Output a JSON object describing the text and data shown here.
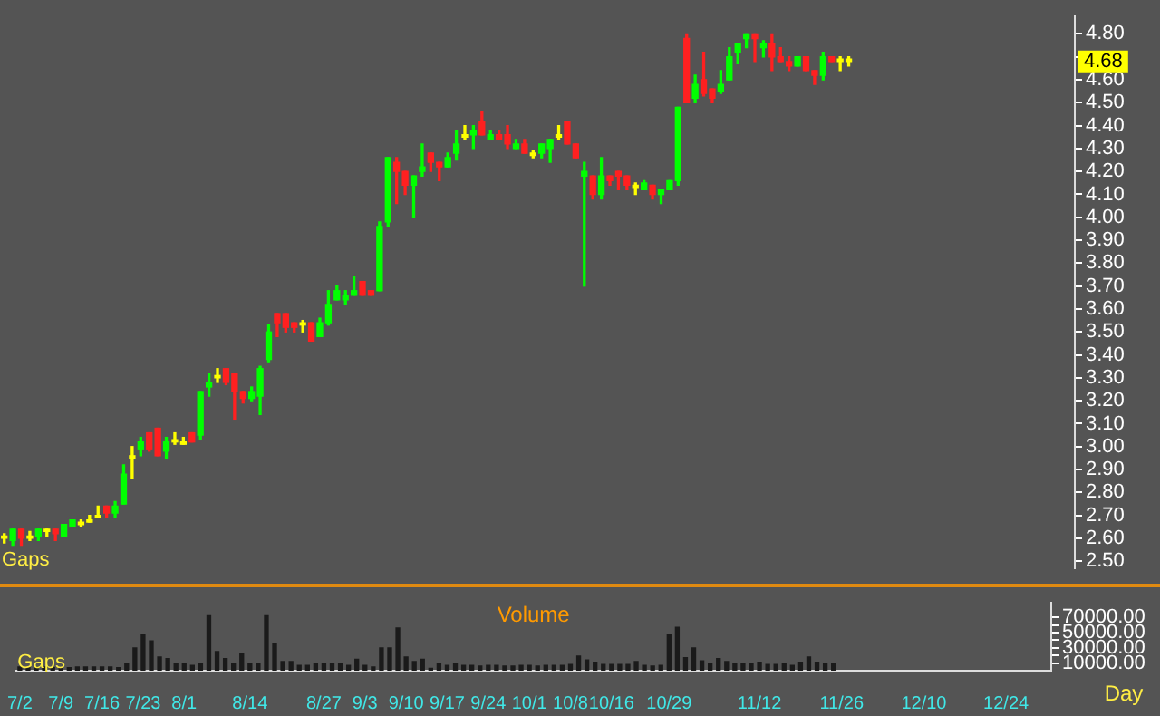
{
  "chart_data": [
    {
      "type": "candlestick",
      "tick_labels": "y",
      "categories": [
        null,
        null,
        null,
        null,
        null,
        null,
        null,
        null,
        null,
        null,
        null,
        null,
        null,
        null,
        null,
        null,
        null,
        null,
        null,
        null,
        null,
        null,
        null,
        null,
        null,
        null,
        null,
        null,
        null,
        null,
        null,
        null,
        null,
        null,
        null,
        null,
        null,
        null,
        null,
        null,
        null,
        null,
        null,
        null,
        null,
        null,
        null,
        null,
        null,
        null,
        null,
        null,
        null,
        null,
        null,
        null,
        null,
        null,
        null,
        null,
        null,
        null,
        null,
        null,
        null,
        null,
        null,
        null,
        null,
        null,
        null,
        null,
        null,
        null,
        null,
        null,
        null,
        null,
        null,
        null,
        null,
        null,
        null,
        null,
        null,
        null,
        null,
        null,
        null,
        null,
        null,
        null,
        null,
        null,
        null,
        null,
        null,
        null,
        null,
        null,
        null,
        null,
        null,
        null,
        null,
        null,
        null,
        null,
        null,
        null,
        null,
        null,
        null,
        null,
        null,
        null,
        null,
        null,
        null,
        null,
        null,
        null,
        null,
        null,
        null,
        null
      ],
      "ohlc": [
        [
          2.61,
          2.62,
          2.58,
          2.6
        ],
        [
          2.59,
          2.64,
          2.57,
          2.64
        ],
        [
          2.64,
          2.64,
          2.57,
          2.6
        ],
        [
          2.61,
          2.63,
          2.59,
          2.6
        ],
        [
          2.61,
          2.64,
          2.59,
          2.64
        ],
        [
          2.64,
          2.64,
          2.61,
          2.63
        ],
        [
          2.64,
          2.64,
          2.59,
          2.62
        ],
        [
          2.61,
          2.66,
          2.61,
          2.66
        ],
        [
          2.65,
          2.68,
          2.65,
          2.68
        ],
        [
          2.67,
          2.68,
          2.65,
          2.66
        ],
        [
          2.68,
          2.7,
          2.67,
          2.67
        ],
        [
          2.7,
          2.74,
          2.69,
          2.69
        ],
        [
          2.74,
          2.74,
          2.69,
          2.71
        ],
        [
          2.71,
          2.76,
          2.69,
          2.74
        ],
        [
          2.75,
          2.92,
          2.75,
          2.88
        ],
        [
          2.96,
          3.0,
          2.86,
          2.95
        ],
        [
          2.99,
          3.04,
          2.96,
          3.02
        ],
        [
          3.06,
          3.06,
          2.98,
          2.99
        ],
        [
          3.08,
          3.08,
          2.96,
          2.96
        ],
        [
          2.98,
          3.04,
          2.95,
          3.02
        ],
        [
          3.02,
          3.06,
          3.01,
          3.03
        ],
        [
          3.02,
          3.04,
          3.01,
          3.01
        ],
        [
          3.06,
          3.06,
          3.02,
          3.02
        ],
        [
          3.05,
          3.24,
          3.03,
          3.24
        ],
        [
          3.26,
          3.32,
          3.22,
          3.28
        ],
        [
          3.31,
          3.34,
          3.28,
          3.3
        ],
        [
          3.34,
          3.34,
          3.27,
          3.28
        ],
        [
          3.32,
          3.32,
          3.12,
          3.24
        ],
        [
          3.24,
          3.24,
          3.19,
          3.21
        ],
        [
          3.21,
          3.26,
          3.2,
          3.24
        ],
        [
          3.22,
          3.35,
          3.14,
          3.34
        ],
        [
          3.38,
          3.53,
          3.37,
          3.5
        ],
        [
          3.58,
          3.58,
          3.48,
          3.54
        ],
        [
          3.58,
          3.58,
          3.5,
          3.52
        ],
        [
          3.54,
          3.54,
          3.5,
          3.52
        ],
        [
          3.54,
          3.55,
          3.5,
          3.53
        ],
        [
          3.54,
          3.54,
          3.46,
          3.46
        ],
        [
          3.48,
          3.56,
          3.48,
          3.54
        ],
        [
          3.54,
          3.68,
          3.53,
          3.62
        ],
        [
          3.64,
          3.7,
          3.64,
          3.68
        ],
        [
          3.64,
          3.68,
          3.62,
          3.66
        ],
        [
          3.66,
          3.74,
          3.66,
          3.68
        ],
        [
          3.72,
          3.72,
          3.66,
          3.66
        ],
        [
          3.68,
          3.68,
          3.66,
          3.66
        ],
        [
          3.68,
          3.98,
          3.68,
          3.96
        ],
        [
          3.98,
          4.26,
          3.96,
          4.26
        ],
        [
          4.24,
          4.26,
          4.06,
          4.2
        ],
        [
          4.2,
          4.2,
          4.1,
          4.14
        ],
        [
          4.14,
          4.18,
          4.0,
          4.18
        ],
        [
          4.2,
          4.32,
          4.18,
          4.22
        ],
        [
          4.28,
          4.28,
          4.2,
          4.24
        ],
        [
          4.24,
          4.24,
          4.16,
          4.22
        ],
        [
          4.22,
          4.28,
          4.22,
          4.26
        ],
        [
          4.28,
          4.38,
          4.25,
          4.32
        ],
        [
          4.36,
          4.4,
          4.34,
          4.35
        ],
        [
          4.36,
          4.4,
          4.3,
          4.38
        ],
        [
          4.42,
          4.46,
          4.36,
          4.36
        ],
        [
          4.34,
          4.38,
          4.34,
          4.36
        ],
        [
          4.36,
          4.38,
          4.34,
          4.34
        ],
        [
          4.36,
          4.4,
          4.3,
          4.32
        ],
        [
          4.3,
          4.34,
          4.3,
          4.32
        ],
        [
          4.32,
          4.34,
          4.28,
          4.28
        ],
        [
          4.28,
          4.29,
          4.26,
          4.27
        ],
        [
          4.28,
          4.32,
          4.26,
          4.32
        ],
        [
          4.3,
          4.34,
          4.24,
          4.34
        ],
        [
          4.36,
          4.4,
          4.34,
          4.35
        ],
        [
          4.42,
          4.42,
          4.32,
          4.32
        ],
        [
          4.32,
          4.32,
          4.26,
          4.26
        ],
        [
          4.18,
          4.24,
          3.7,
          4.2
        ],
        [
          4.18,
          4.18,
          4.08,
          4.1
        ],
        [
          4.1,
          4.26,
          4.08,
          4.18
        ],
        [
          4.18,
          4.18,
          4.14,
          4.16
        ],
        [
          4.2,
          4.2,
          4.12,
          4.18
        ],
        [
          4.18,
          4.18,
          4.12,
          4.14
        ],
        [
          4.14,
          4.15,
          4.1,
          4.13
        ],
        [
          4.12,
          4.16,
          4.12,
          4.15
        ],
        [
          4.14,
          4.14,
          4.08,
          4.1
        ],
        [
          4.1,
          4.12,
          4.06,
          4.12
        ],
        [
          4.12,
          4.16,
          4.12,
          4.16
        ],
        [
          4.16,
          4.48,
          4.14,
          4.48
        ],
        [
          4.78,
          4.8,
          4.5,
          4.5
        ],
        [
          4.52,
          4.62,
          4.5,
          4.58
        ],
        [
          4.6,
          4.72,
          4.53,
          4.54
        ],
        [
          4.56,
          4.56,
          4.5,
          4.52
        ],
        [
          4.55,
          4.64,
          4.54,
          4.58
        ],
        [
          4.6,
          4.74,
          4.6,
          4.7
        ],
        [
          4.72,
          4.76,
          4.67,
          4.76
        ],
        [
          4.78,
          4.8,
          4.74,
          4.8
        ],
        [
          4.8,
          4.8,
          4.68,
          4.78
        ],
        [
          4.74,
          4.77,
          4.7,
          4.76
        ],
        [
          4.76,
          4.8,
          4.64,
          4.7
        ],
        [
          4.7,
          4.74,
          4.68,
          4.68
        ],
        [
          4.68,
          4.7,
          4.64,
          4.66
        ],
        [
          4.66,
          4.7,
          4.66,
          4.7
        ],
        [
          4.7,
          4.7,
          4.64,
          4.64
        ],
        [
          4.64,
          4.64,
          4.58,
          4.62
        ],
        [
          4.62,
          4.72,
          4.6,
          4.7
        ],
        [
          4.7,
          4.7,
          4.68,
          4.68
        ],
        [
          4.68,
          4.7,
          4.64,
          4.69
        ],
        [
          4.68,
          4.7,
          4.66,
          4.69
        ],
        null,
        null,
        null,
        null,
        null,
        null,
        null,
        null,
        null,
        null,
        null,
        null,
        null,
        null,
        null,
        null,
        null,
        null,
        null,
        null,
        null,
        null,
        null,
        null,
        null,
        null
      ],
      "colors": [
        "#ffff00",
        "#00ff00",
        "#ff2020",
        "#ffff00",
        "#00ff00",
        "#ffff00",
        "#ff2020",
        "#00ff00",
        "#00ff00",
        "#ffff00",
        "#ffff00",
        "#ffff00",
        "#ff2020",
        "#00ff00",
        "#00ff00",
        "#ffff00",
        "#00ff00",
        "#ff2020",
        "#ff2020",
        "#00ff00",
        "#ffff00",
        "#ffff00",
        "#ff2020",
        "#00ff00",
        "#00ff00",
        "#ffff00",
        "#ff2020",
        "#ff2020",
        "#ff2020",
        "#00ff00",
        "#00ff00",
        "#00ff00",
        "#ff2020",
        "#ff2020",
        "#ff2020",
        "#ffff00",
        "#ff2020",
        "#00ff00",
        "#00ff00",
        "#00ff00",
        "#00ff00",
        "#00ff00",
        "#ff2020",
        "#ff2020",
        "#00ff00",
        "#00ff00",
        "#ff2020",
        "#ff2020",
        "#00ff00",
        "#00ff00",
        "#ff2020",
        "#ff2020",
        "#00ff00",
        "#00ff00",
        "#ffff00",
        "#00ff00",
        "#ff2020",
        "#00ff00",
        "#ff2020",
        "#ff2020",
        "#00ff00",
        "#ff2020",
        "#ffff00",
        "#00ff00",
        "#00ff00",
        "#ffff00",
        "#ff2020",
        "#ff2020",
        "#00ff00",
        "#ff2020",
        "#00ff00",
        "#ff2020",
        "#ff2020",
        "#ff2020",
        "#ffff00",
        "#00ff00",
        "#ff2020",
        "#00ff00",
        "#00ff00",
        "#00ff00",
        "#ff2020",
        "#00ff00",
        "#ff2020",
        "#ff2020",
        "#00ff00",
        "#00ff00",
        "#00ff00",
        "#00ff00",
        "#ff2020",
        "#00ff00",
        "#ff2020",
        "#ff2020",
        "#ff2020",
        "#00ff00",
        "#ff2020",
        "#ff2020",
        "#00ff00",
        "#ff2020",
        "#ffff00",
        "#ffff00",
        null,
        null,
        null,
        null,
        null,
        null,
        null,
        null,
        null,
        null,
        null,
        null,
        null,
        null,
        null,
        null,
        null,
        null,
        null,
        null,
        null,
        null,
        null,
        null,
        null,
        null
      ],
      "ylim": [
        2.47,
        4.88
      ],
      "yticks": [
        {
          "value": 2.5,
          "label": "2.50"
        },
        {
          "value": 2.6,
          "label": "2.60"
        },
        {
          "value": 2.7,
          "label": "2.70"
        },
        {
          "value": 2.8,
          "label": "2.80"
        },
        {
          "value": 2.9,
          "label": "2.90"
        },
        {
          "value": 3.0,
          "label": "3.00"
        },
        {
          "value": 3.1,
          "label": "3.10"
        },
        {
          "value": 3.2,
          "label": "3.20"
        },
        {
          "value": 3.3,
          "label": "3.30"
        },
        {
          "value": 3.4,
          "label": "3.40"
        },
        {
          "value": 3.5,
          "label": "3.50"
        },
        {
          "value": 3.6,
          "label": "3.60"
        },
        {
          "value": 3.7,
          "label": "3.70"
        },
        {
          "value": 3.8,
          "label": "3.80"
        },
        {
          "value": 3.9,
          "label": "3.90"
        },
        {
          "value": 4.0,
          "label": "4.00"
        },
        {
          "value": 4.1,
          "label": "4.10"
        },
        {
          "value": 4.2,
          "label": "4.20"
        },
        {
          "value": 4.3,
          "label": "4.30"
        },
        {
          "value": 4.4,
          "label": "4.40"
        },
        {
          "value": 4.5,
          "label": "4.50"
        },
        {
          "value": 4.6,
          "label": "4.60"
        },
        {
          "value": 4.7,
          "label": null
        },
        {
          "value": 4.8,
          "label": "4.80"
        }
      ],
      "annotations": [
        "Gaps",
        {
          "text": "4.68",
          "y": 4.68
        }
      ]
    },
    {
      "type": "bar",
      "title": "Volume",
      "xlabel": "Day",
      "color": "#1a1a1a",
      "categories": [
        "7/2",
        null,
        null,
        null,
        null,
        "7/9",
        null,
        null,
        null,
        null,
        "7/16",
        null,
        null,
        null,
        null,
        "7/23",
        null,
        null,
        null,
        null,
        "8/1",
        null,
        null,
        null,
        null,
        null,
        null,
        null,
        "8/14",
        null,
        null,
        null,
        null,
        null,
        null,
        null,
        null,
        "8/27",
        null,
        null,
        null,
        null,
        "9/3",
        null,
        null,
        null,
        null,
        "9/10",
        null,
        null,
        null,
        null,
        "9/17",
        null,
        null,
        null,
        null,
        "9/24",
        null,
        null,
        null,
        null,
        "10/1",
        null,
        null,
        null,
        null,
        "10/8",
        null,
        null,
        null,
        null,
        "10/16",
        null,
        null,
        null,
        null,
        null,
        null,
        "10/29",
        null,
        null,
        null,
        null,
        null,
        null,
        null,
        null,
        null,
        null,
        "11/12",
        null,
        null,
        null,
        null,
        null,
        null,
        null,
        null,
        null,
        "11/26",
        null,
        null,
        null,
        null,
        null,
        null,
        null,
        null,
        null,
        "12/10",
        null,
        null,
        null,
        null,
        null,
        null,
        null,
        null,
        null,
        "12/24",
        null,
        null,
        null,
        null,
        null
      ],
      "values": [
        5000,
        5000,
        5000,
        5000,
        4000,
        4000,
        4000,
        5000,
        5000,
        5000,
        5000,
        5000,
        4000,
        9000,
        30000,
        47000,
        39000,
        18000,
        16000,
        9000,
        9000,
        7000,
        9000,
        72000,
        25000,
        16000,
        10000,
        22000,
        9000,
        10000,
        72000,
        35000,
        12000,
        12000,
        7000,
        7000,
        10000,
        10000,
        10000,
        9000,
        7000,
        15000,
        7000,
        5000,
        30000,
        30000,
        56000,
        18000,
        12000,
        15000,
        3000,
        9000,
        7000,
        9000,
        7000,
        7000,
        6000,
        7000,
        7000,
        6000,
        6000,
        7000,
        7000,
        6000,
        7000,
        7000,
        7000,
        8000,
        19000,
        14000,
        11000,
        8000,
        8000,
        8000,
        8000,
        12000,
        7000,
        6000,
        7000,
        47000,
        57000,
        17000,
        30000,
        13000,
        9000,
        16000,
        12000,
        9000,
        9000,
        10000,
        11000,
        8000,
        8000,
        10000,
        7000,
        11000,
        18000,
        11000,
        9000,
        9000,
        null,
        null,
        null,
        null,
        null,
        null,
        null,
        null,
        null,
        null,
        null,
        null,
        null,
        null,
        null,
        null,
        null,
        null,
        null,
        null,
        null,
        null,
        null,
        null,
        null,
        null
      ],
      "ylim": [
        0,
        89000
      ],
      "yticks": [
        {
          "value": 10000,
          "label": "10000.00"
        },
        {
          "value": 20000,
          "label": null
        },
        {
          "value": 30000,
          "label": "30000.00"
        },
        {
          "value": 40000,
          "label": null
        },
        {
          "value": 50000,
          "label": "50000.00"
        },
        {
          "value": 60000,
          "label": null
        },
        {
          "value": 70000,
          "label": "70000.00"
        }
      ],
      "annotations": [
        "Gaps"
      ]
    }
  ]
}
